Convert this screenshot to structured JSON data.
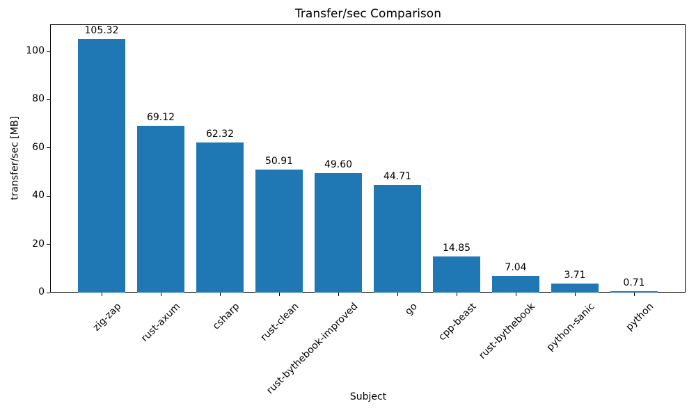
{
  "chart_data": {
    "type": "bar",
    "title": "Transfer/sec Comparison",
    "xlabel": "Subject",
    "ylabel": "transfer/sec [MB]",
    "categories": [
      "zig-zap",
      "rust-axum",
      "csharp",
      "rust-clean",
      "rust-bythebook-improved",
      "go",
      "cpp-beast",
      "rust-bythebook",
      "python-sanic",
      "python"
    ],
    "values": [
      105.32,
      69.12,
      62.32,
      50.91,
      49.6,
      44.71,
      14.85,
      7.04,
      3.71,
      0.71
    ],
    "value_labels": [
      "105.32",
      "69.12",
      "62.32",
      "50.91",
      "49.60",
      "44.71",
      "14.85",
      "7.04",
      "3.71",
      "0.71"
    ],
    "yticks": [
      0,
      20,
      40,
      60,
      80,
      100
    ],
    "ylim": [
      0,
      111.2
    ],
    "bar_color": "#1f77b4",
    "grid": false,
    "legend": null,
    "x_tick_rotation_deg": 45
  }
}
